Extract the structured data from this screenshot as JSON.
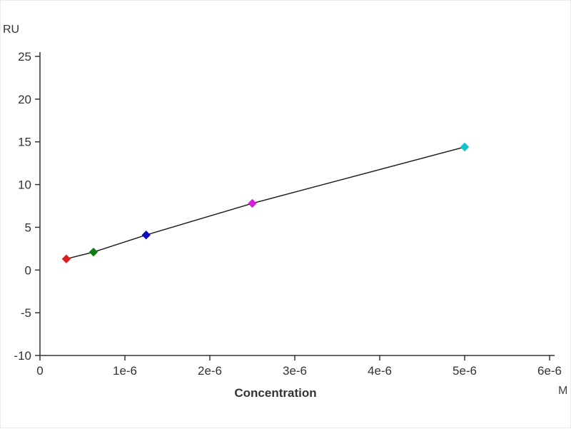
{
  "chart_data": {
    "type": "scatter",
    "title": "",
    "ylabel": "RU",
    "xlabel": "Concentration",
    "x_unit_label": "M",
    "xlim": [
      0,
      6e-06
    ],
    "ylim": [
      -10,
      25
    ],
    "grid": false,
    "legend": "none",
    "axis_color": "#333333",
    "tick_label_color": "#333333",
    "fit_line_color": "#1a1a1a",
    "x_ticks": [
      {
        "value": 0,
        "label": "0"
      },
      {
        "value": 1e-06,
        "label": "1e-6"
      },
      {
        "value": 2e-06,
        "label": "2e-6"
      },
      {
        "value": 3e-06,
        "label": "3e-6"
      },
      {
        "value": 4e-06,
        "label": "4e-6"
      },
      {
        "value": 5e-06,
        "label": "5e-6"
      },
      {
        "value": 6e-06,
        "label": "6e-6"
      }
    ],
    "y_ticks": [
      {
        "value": 25,
        "label": "25"
      },
      {
        "value": 20,
        "label": "20"
      },
      {
        "value": 15,
        "label": "15"
      },
      {
        "value": 10,
        "label": "10"
      },
      {
        "value": 5,
        "label": "5"
      },
      {
        "value": 0,
        "label": "0"
      },
      {
        "value": -5,
        "label": "-5"
      },
      {
        "value": -10,
        "label": "-10"
      }
    ],
    "points": [
      {
        "x": 3.1e-07,
        "y": 1.3,
        "color": "#dd1c1c",
        "name": "point-red"
      },
      {
        "x": 6.3e-07,
        "y": 2.1,
        "color": "#0e7d12",
        "name": "point-green"
      },
      {
        "x": 1.25e-06,
        "y": 4.1,
        "color": "#0b0bbf",
        "name": "point-blue"
      },
      {
        "x": 2.5e-06,
        "y": 7.8,
        "color": "#d91ed9",
        "name": "point-magenta"
      },
      {
        "x": 5e-06,
        "y": 14.4,
        "color": "#12c4cc",
        "name": "point-cyan"
      }
    ],
    "fit_line": {
      "description": "near-linear fit through all data points",
      "x": [
        3.1e-07,
        6.3e-07,
        1.25e-06,
        2.5e-06,
        5e-06
      ],
      "y": [
        1.3,
        2.1,
        4.1,
        7.8,
        14.4
      ]
    }
  }
}
